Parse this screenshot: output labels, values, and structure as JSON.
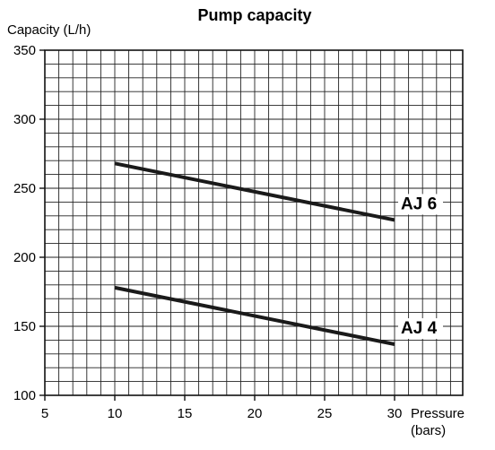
{
  "chart_data": {
    "type": "line",
    "title": "Pump capacity",
    "ylabel": "Capacity (L/h)",
    "xlabel_line1": "Pressure",
    "xlabel_line2": "(bars)",
    "xlim": [
      5,
      35
    ],
    "ylim": [
      100,
      350
    ],
    "x_ticks": [
      5,
      10,
      15,
      20,
      25,
      30
    ],
    "y_ticks": [
      100,
      150,
      200,
      250,
      300,
      350
    ],
    "x_minor_step": 1,
    "y_minor_step": 10,
    "grid": true,
    "series": [
      {
        "name": "AJ 6",
        "x": [
          10,
          30
        ],
        "y": [
          268,
          227
        ]
      },
      {
        "name": "AJ 4",
        "x": [
          10,
          30
        ],
        "y": [
          178,
          137
        ]
      }
    ]
  }
}
